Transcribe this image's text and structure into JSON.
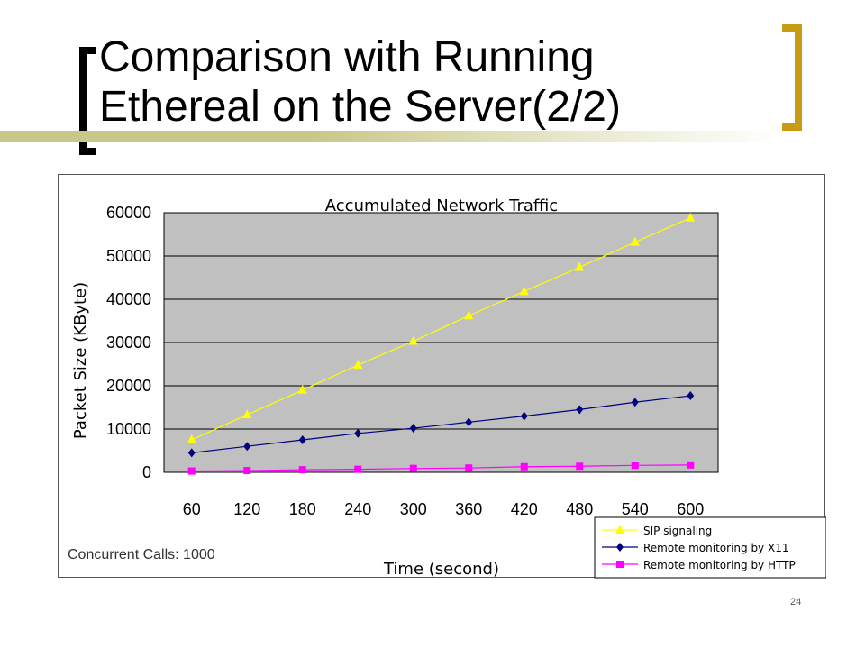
{
  "slide": {
    "title_line1": "Comparison with Running",
    "title_line2": "Ethereal on the Server(2/2)",
    "note": "Concurrent Calls: 1000",
    "page_number": "24",
    "accent_color": "#c89b14"
  },
  "chart_data": {
    "type": "line",
    "title": "Accumulated Network Traffic",
    "xlabel": "Time (second)",
    "ylabel": "Packet Size (KByte)",
    "categories": [
      "60",
      "120",
      "180",
      "240",
      "300",
      "360",
      "420",
      "480",
      "540",
      "600"
    ],
    "ylim": [
      0,
      60000
    ],
    "yticks": [
      "0",
      "10000",
      "20000",
      "30000",
      "40000",
      "50000",
      "60000"
    ],
    "grid": true,
    "plot_background": "#c0c0c0",
    "legend_position": "bottom-right",
    "series": [
      {
        "name": "SIP signaling",
        "color": "#ffff00",
        "marker": "triangle",
        "values": [
          7500,
          13300,
          19000,
          24800,
          30300,
          36200,
          41800,
          47400,
          53200,
          58800
        ]
      },
      {
        "name": "Remote monitoring by X11",
        "color": "#000080",
        "marker": "diamond",
        "values": [
          4500,
          6000,
          7500,
          9000,
          10200,
          11600,
          13000,
          14500,
          16200,
          17700
        ]
      },
      {
        "name": "Remote monitoring by HTTP",
        "color": "#ff00ff",
        "marker": "square",
        "values": [
          300,
          400,
          600,
          700,
          900,
          1000,
          1300,
          1400,
          1600,
          1700
        ]
      }
    ]
  }
}
